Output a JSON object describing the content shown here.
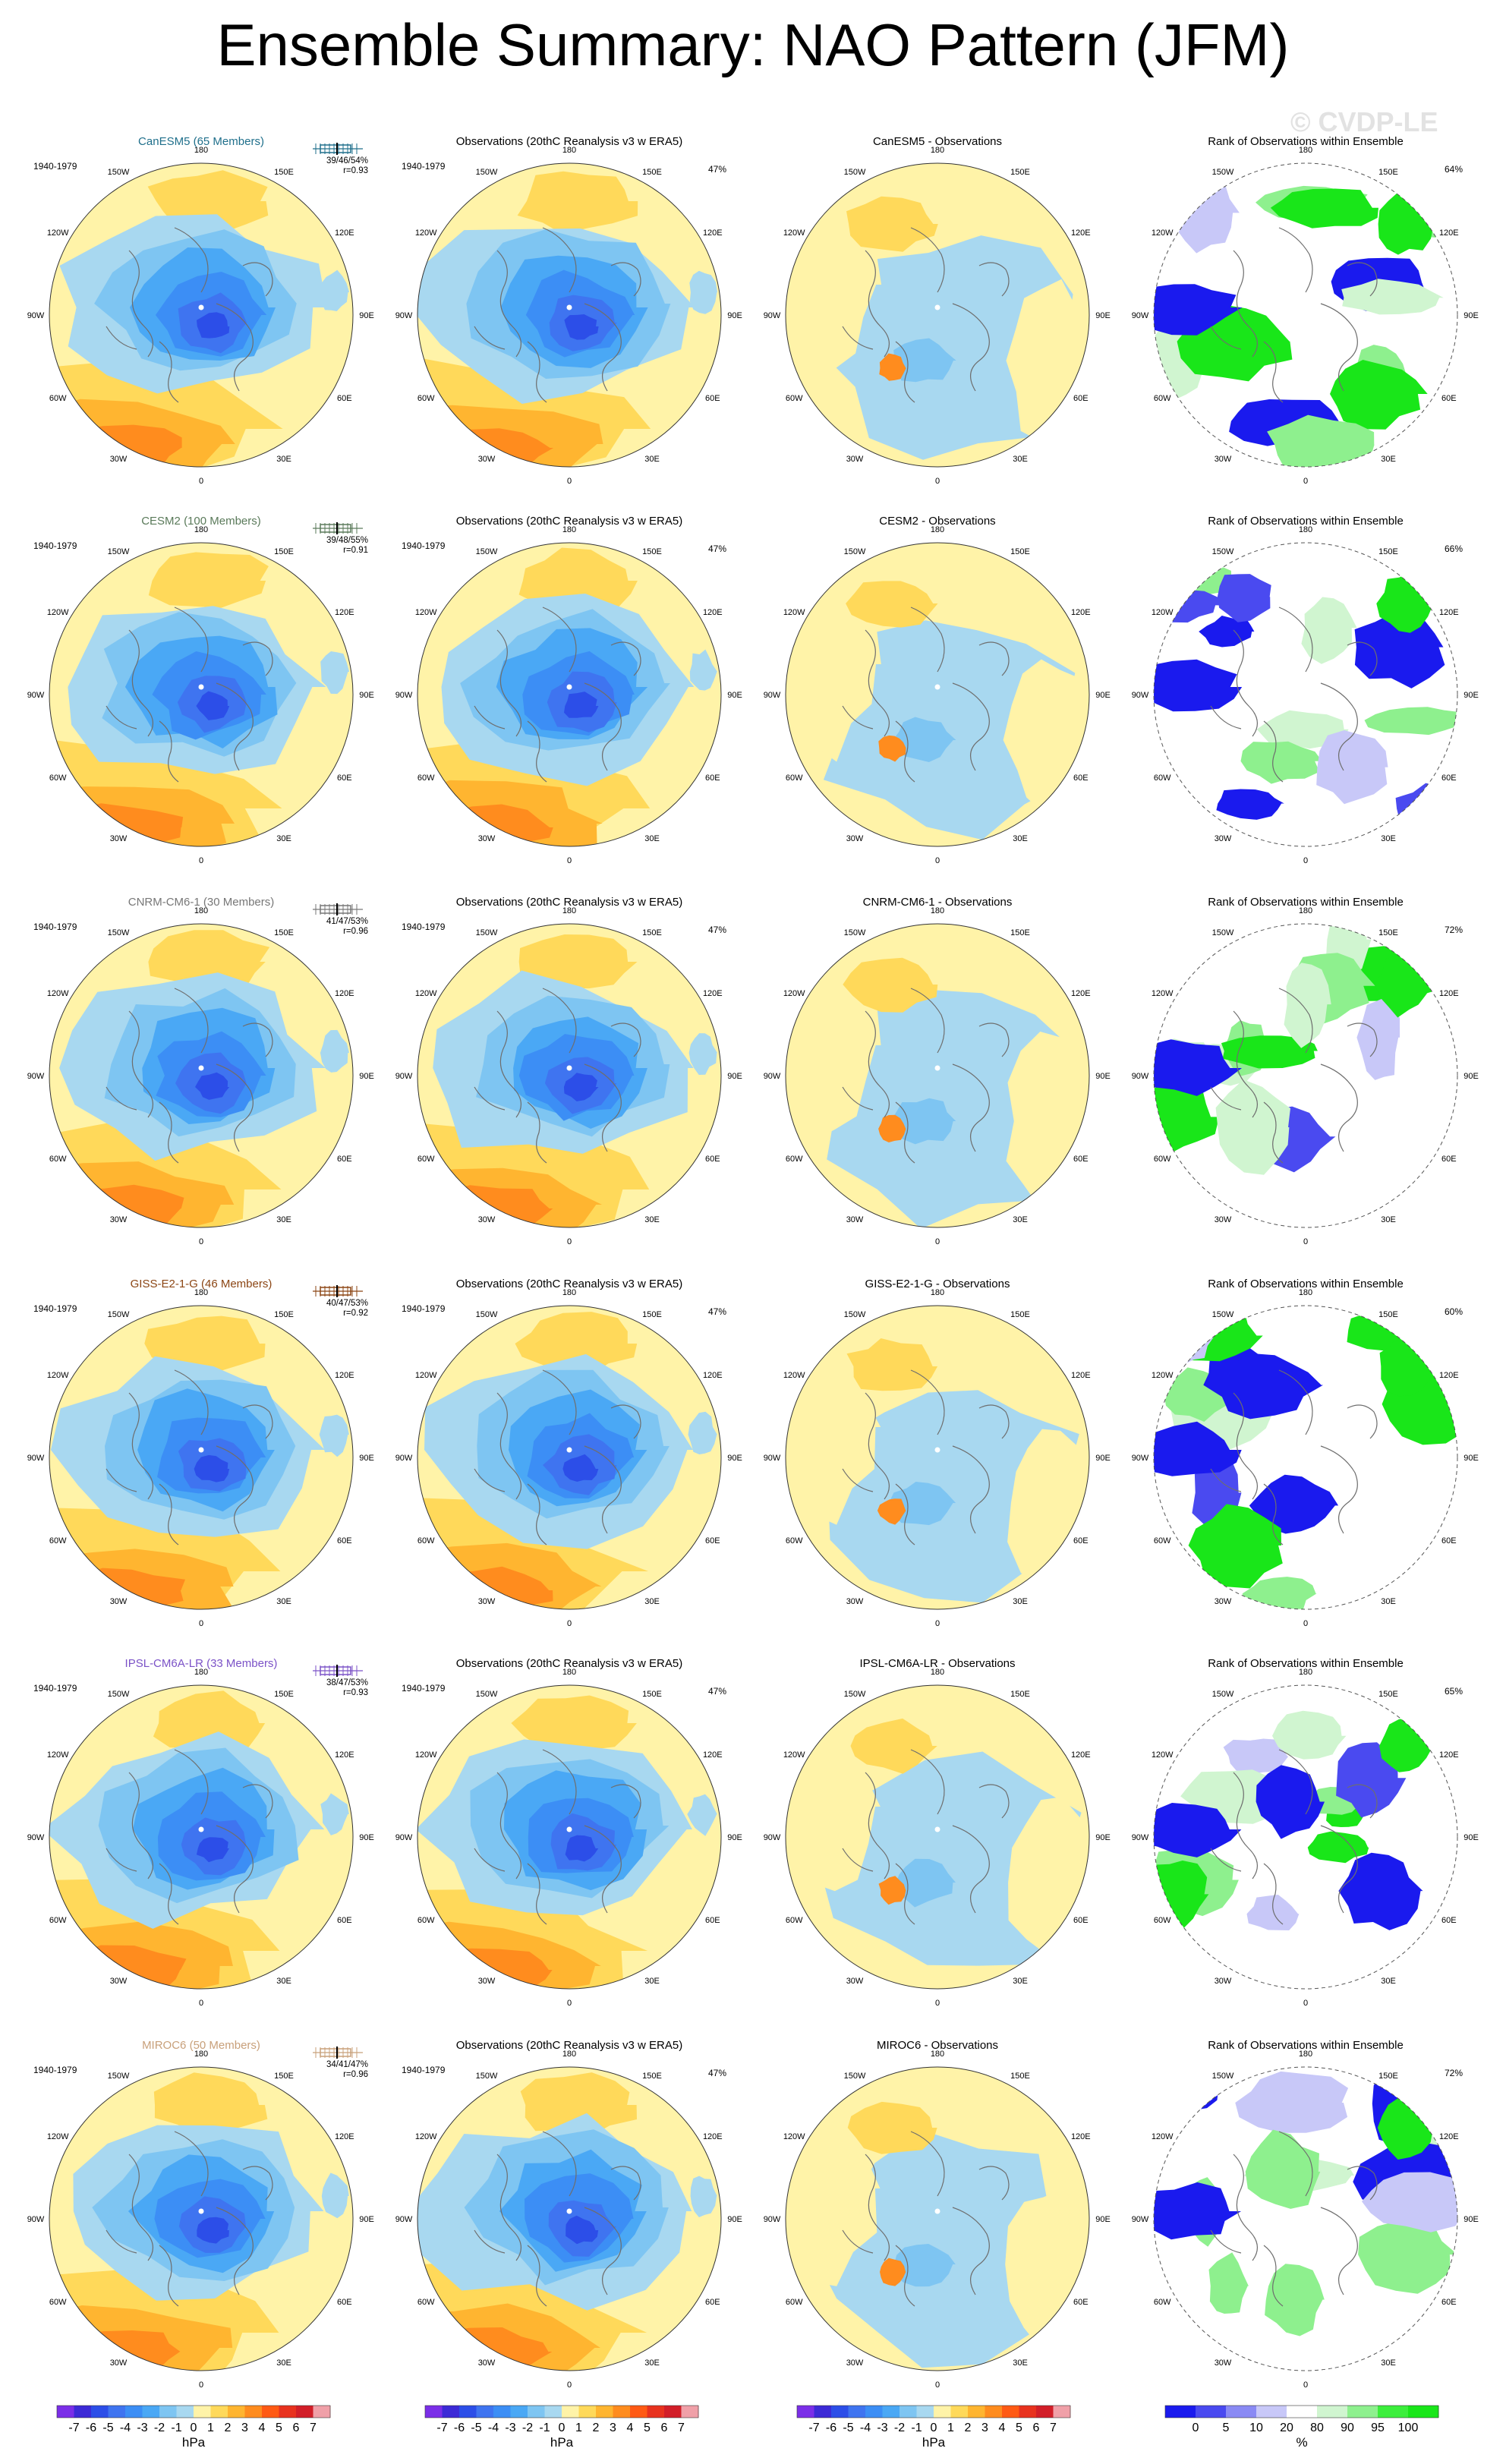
{
  "title": "Ensemble Summary: NAO Pattern (JFM)",
  "watermark": "© CVDP-LE",
  "period": "1940-1979",
  "obs_title": "Observations (20thC Reanalysis v3 w ERA5)",
  "rank_title": "Rank of Observations within Ensemble",
  "lon_labels": [
    "180",
    "150E",
    "120E",
    "90E",
    "60E",
    "30E",
    "0",
    "30W",
    "60W",
    "90W",
    "120W",
    "150W"
  ],
  "rows": [
    {
      "model": "CanESM5 (65 Members)",
      "model_color": "#1f6f8b",
      "stats": "39/46/54%",
      "r": "r=0.93",
      "obs_pct": "47%",
      "diff_title": "CanESM5 - Observations",
      "rank_pct": "64%"
    },
    {
      "model": "CESM2 (100 Members)",
      "model_color": "#5a7a5a",
      "stats": "39/48/55%",
      "r": "r=0.91",
      "obs_pct": "47%",
      "diff_title": "CESM2 - Observations",
      "rank_pct": "66%"
    },
    {
      "model": "CNRM-CM6-1 (30 Members)",
      "model_color": "#777777",
      "stats": "41/47/53%",
      "r": "r=0.96",
      "obs_pct": "47%",
      "diff_title": "CNRM-CM6-1 - Observations",
      "rank_pct": "72%"
    },
    {
      "model": "GISS-E2-1-G (46 Members)",
      "model_color": "#8b4513",
      "stats": "40/47/53%",
      "r": "r=0.92",
      "obs_pct": "47%",
      "diff_title": "GISS-E2-1-G - Observations",
      "rank_pct": "60%"
    },
    {
      "model": "IPSL-CM6A-LR (33 Members)",
      "model_color": "#7b52c7",
      "stats": "38/47/53%",
      "r": "r=0.93",
      "obs_pct": "47%",
      "diff_title": "IPSL-CM6A-LR - Observations",
      "rank_pct": "65%"
    },
    {
      "model": "MIROC6 (50 Members)",
      "model_color": "#c8a07a",
      "stats": "34/41/47%",
      "r": "r=0.96",
      "obs_pct": "47%",
      "diff_title": "MIROC6 - Observations",
      "rank_pct": "72%"
    }
  ],
  "colorbar_hpa": {
    "unit": "hPa",
    "ticks": [
      "-7",
      "-6",
      "-5",
      "-4",
      "-3",
      "-2",
      "-1",
      "0",
      "1",
      "2",
      "3",
      "4",
      "5",
      "6",
      "7"
    ],
    "colors": [
      "#7b2ee8",
      "#3c2ad6",
      "#2c4ee8",
      "#3f74f0",
      "#3c8ef5",
      "#4aa8f5",
      "#7ec5f2",
      "#a8d8f0",
      "#fff3a8",
      "#ffd95a",
      "#ffb530",
      "#ff8c1e",
      "#ff5a14",
      "#e8321e",
      "#d21e28",
      "#f0a0a8"
    ]
  },
  "colorbar_rank": {
    "unit": "%",
    "ticks": [
      "0",
      "5",
      "10",
      "20",
      "80",
      "90",
      "95",
      "100"
    ],
    "colors": [
      "#1a1aee",
      "#4a4af0",
      "#8a8af4",
      "#c8c8f8",
      "#ffffff",
      "#d0f5d0",
      "#8ef08e",
      "#3cee3c",
      "#19e619"
    ]
  }
}
